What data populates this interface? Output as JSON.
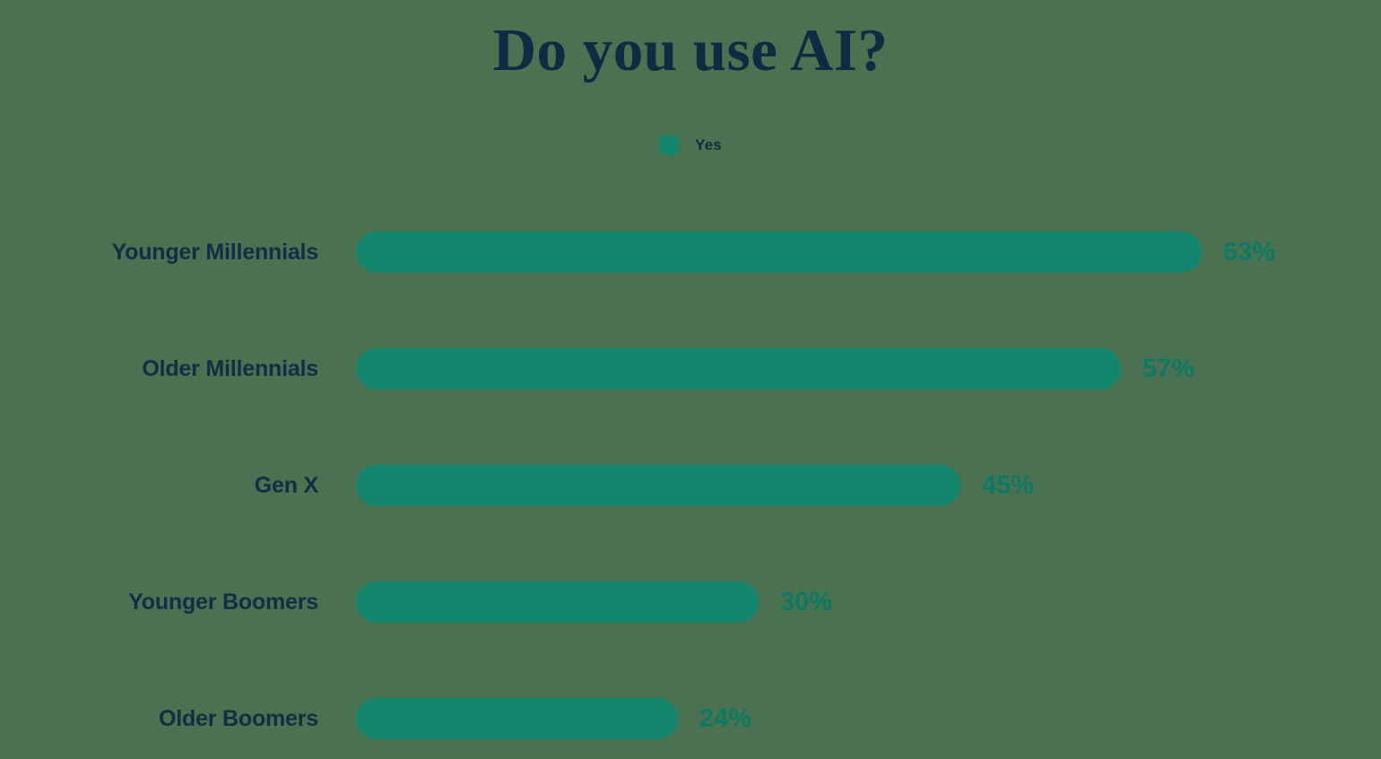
{
  "page": {
    "background_color": "#4A7150"
  },
  "chart_data": {
    "type": "bar",
    "orientation": "horizontal",
    "title": "Do you use AI?",
    "legend": [
      {
        "label": "Yes",
        "color": "#12866C"
      }
    ],
    "legend_position": "top-center",
    "categories": [
      "Younger Millennials",
      "Older Millennials",
      "Gen X",
      "Younger Boomers",
      "Older Boomers"
    ],
    "series": [
      {
        "name": "Yes",
        "values": [
          63,
          57,
          45,
          30,
          24
        ]
      }
    ],
    "value_labels": [
      "63%",
      "57%",
      "45%",
      "30%",
      "24%"
    ],
    "unit": "%",
    "xlim": [
      0,
      100
    ],
    "grid": false,
    "colors": {
      "bar": "#12866C",
      "title": "#0E2B44",
      "category_label": "#112E46",
      "value_label": "#0B7A65",
      "background": "#4A7150"
    }
  }
}
